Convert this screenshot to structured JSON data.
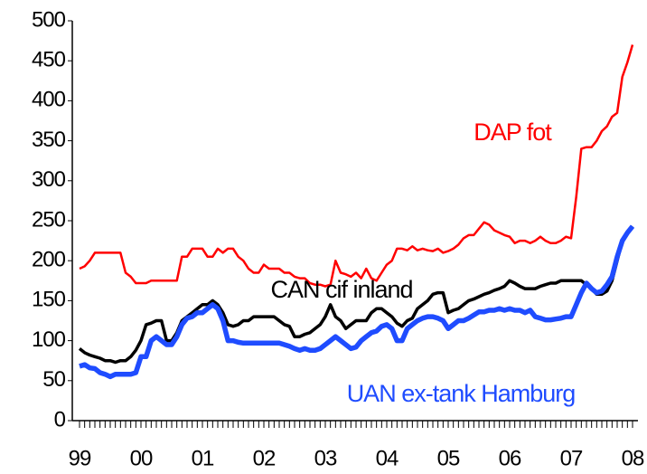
{
  "chart_data": {
    "type": "line",
    "categories": [
      "99",
      null,
      null,
      null,
      null,
      null,
      null,
      null,
      null,
      null,
      null,
      null,
      "00",
      null,
      null,
      null,
      null,
      null,
      null,
      null,
      null,
      null,
      null,
      null,
      "01",
      null,
      null,
      null,
      null,
      null,
      null,
      null,
      null,
      null,
      null,
      null,
      "02",
      null,
      null,
      null,
      null,
      null,
      null,
      null,
      null,
      null,
      null,
      null,
      "03",
      null,
      null,
      null,
      null,
      null,
      null,
      null,
      null,
      null,
      null,
      null,
      "04",
      null,
      null,
      null,
      null,
      null,
      null,
      null,
      null,
      null,
      null,
      null,
      "05",
      null,
      null,
      null,
      null,
      null,
      null,
      null,
      null,
      null,
      null,
      null,
      "06",
      null,
      null,
      null,
      null,
      null,
      null,
      null,
      null,
      null,
      null,
      null,
      "07",
      null,
      null,
      null,
      null,
      null,
      null,
      null,
      null,
      null,
      null,
      null,
      "08"
    ],
    "series": [
      {
        "name": "DAP fot",
        "color": "#ff0000",
        "values": [
          190,
          193,
          200,
          210,
          210,
          210,
          210,
          210,
          210,
          185,
          180,
          172,
          172,
          172,
          175,
          175,
          175,
          175,
          175,
          175,
          205,
          205,
          215,
          215,
          215,
          205,
          205,
          215,
          210,
          215,
          215,
          205,
          200,
          190,
          185,
          185,
          195,
          190,
          190,
          190,
          185,
          185,
          180,
          178,
          178,
          172,
          170,
          170,
          168,
          170,
          200,
          185,
          183,
          180,
          185,
          178,
          190,
          178,
          175,
          185,
          195,
          200,
          215,
          215,
          213,
          218,
          213,
          215,
          213,
          212,
          215,
          210,
          212,
          215,
          220,
          228,
          232,
          232,
          240,
          248,
          245,
          238,
          235,
          232,
          230,
          222,
          225,
          225,
          222,
          225,
          230,
          225,
          222,
          222,
          225,
          230,
          228,
          280,
          340,
          342,
          342,
          350,
          362,
          368,
          380,
          385,
          430,
          448,
          470
        ]
      },
      {
        "name": "CAN cif inland",
        "color": "#000000",
        "values": [
          90,
          85,
          82,
          80,
          78,
          75,
          75,
          73,
          75,
          75,
          80,
          88,
          100,
          120,
          122,
          125,
          125,
          100,
          100,
          110,
          125,
          130,
          135,
          140,
          145,
          145,
          150,
          145,
          135,
          120,
          118,
          120,
          125,
          125,
          130,
          130,
          130,
          130,
          130,
          125,
          120,
          118,
          105,
          105,
          108,
          110,
          115,
          120,
          130,
          145,
          130,
          125,
          115,
          120,
          125,
          125,
          125,
          135,
          140,
          140,
          135,
          130,
          122,
          118,
          125,
          128,
          140,
          145,
          150,
          158,
          160,
          160,
          135,
          138,
          140,
          145,
          150,
          152,
          155,
          158,
          160,
          163,
          165,
          168,
          175,
          172,
          168,
          165,
          165,
          165,
          168,
          170,
          172,
          172,
          175,
          175,
          175,
          175,
          175,
          170,
          165,
          158,
          158,
          162,
          175,
          200,
          225,
          235,
          243
        ]
      },
      {
        "name": "UAN ex-tank Hamburg",
        "color": "#1f4cff",
        "values": [
          68,
          70,
          66,
          65,
          60,
          58,
          55,
          58,
          58,
          58,
          58,
          60,
          80,
          80,
          100,
          105,
          100,
          95,
          95,
          105,
          120,
          128,
          130,
          135,
          135,
          140,
          145,
          140,
          125,
          100,
          100,
          98,
          97,
          97,
          97,
          97,
          97,
          97,
          97,
          97,
          95,
          93,
          90,
          88,
          90,
          88,
          88,
          90,
          95,
          100,
          105,
          100,
          95,
          90,
          92,
          100,
          105,
          110,
          112,
          118,
          120,
          115,
          100,
          100,
          115,
          120,
          125,
          128,
          130,
          130,
          128,
          125,
          115,
          120,
          125,
          125,
          128,
          132,
          136,
          136,
          138,
          138,
          140,
          138,
          140,
          138,
          138,
          135,
          138,
          130,
          128,
          126,
          126,
          127,
          128,
          130,
          130,
          145,
          160,
          172,
          165,
          160,
          162,
          170,
          180,
          205,
          225,
          235,
          243
        ]
      }
    ],
    "ylim": [
      0,
      500
    ],
    "yticks": [
      0,
      50,
      100,
      150,
      200,
      250,
      300,
      350,
      400,
      450,
      500
    ],
    "grid": false
  }
}
